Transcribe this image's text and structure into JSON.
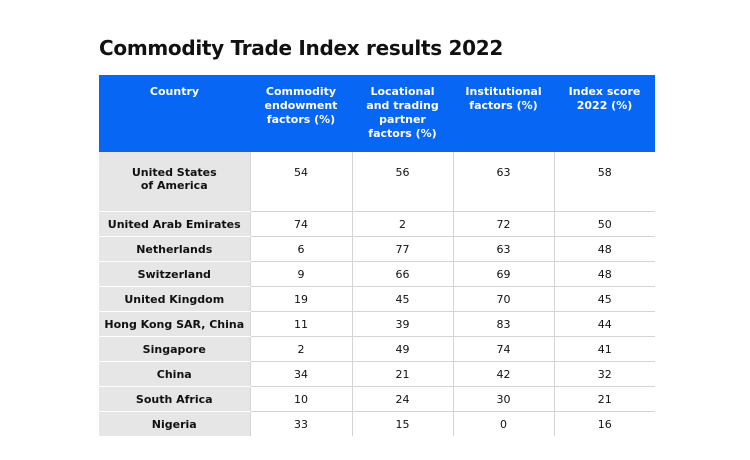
{
  "chart_data": {
    "type": "table",
    "title": "Commodity Trade Index results 2022",
    "columns": [
      "Country",
      "Commodity\nendowment\nfactors (%)",
      "Locational\nand trading\npartner\nfactors (%)",
      "Institutional\nfactors (%)",
      "Index score\n2022 (%)"
    ],
    "rows": [
      [
        "United States\nof America",
        "54",
        "56",
        "63",
        "58"
      ],
      [
        "United Arab Emirates",
        "74",
        "2",
        "72",
        "50"
      ],
      [
        "Netherlands",
        "6",
        "77",
        "63",
        "48"
      ],
      [
        "Switzerland",
        "9",
        "66",
        "69",
        "48"
      ],
      [
        "United Kingdom",
        "19",
        "45",
        "70",
        "45"
      ],
      [
        "Hong Kong SAR, China",
        "11",
        "39",
        "83",
        "44"
      ],
      [
        "Singapore",
        "2",
        "49",
        "74",
        "41"
      ],
      [
        "China",
        "34",
        "21",
        "42",
        "32"
      ],
      [
        "South Africa",
        "10",
        "24",
        "30",
        "21"
      ],
      [
        "Nigeria",
        "33",
        "15",
        "0",
        "16"
      ]
    ],
    "colors": {
      "header_bg": "#0766f3",
      "header_text": "#ffffff",
      "country_bg": "#e6e6e6"
    }
  }
}
